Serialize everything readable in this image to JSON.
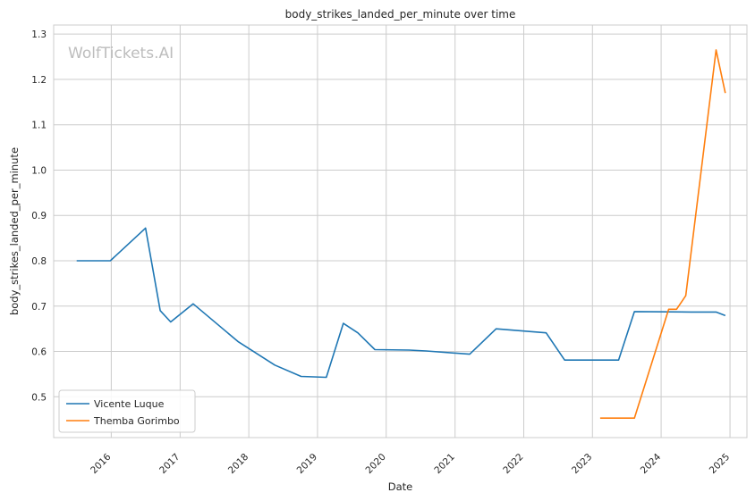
{
  "chart_data": {
    "type": "line",
    "title": "body_strikes_landed_per_minute over time",
    "xlabel": "Date",
    "ylabel": "body_strikes_landed_per_minute",
    "watermark": "WolfTickets.AI",
    "x_tick_labels": [
      "2016",
      "2017",
      "2018",
      "2019",
      "2020",
      "2021",
      "2022",
      "2023",
      "2024",
      "2025"
    ],
    "y_ticks": [
      0.5,
      0.6,
      0.7,
      0.8,
      0.9,
      1.0,
      1.1,
      1.2,
      1.3
    ],
    "y_tick_labels": [
      "0.5",
      "0.6",
      "0.7",
      "0.8",
      "0.9",
      "1.0",
      "1.1",
      "1.2",
      "1.3"
    ],
    "xlim": [
      "2015-03-01",
      "2025-04-01"
    ],
    "ylim": [
      0.41,
      1.32
    ],
    "grid": true,
    "legend_position": "lower-left",
    "series": [
      {
        "name": "Vicente Luque",
        "color": "#1f77b4",
        "x": [
          "2015-07-01",
          "2015-12-27",
          "2016-07-01",
          "2016-09-17",
          "2016-11-12",
          "2017-03-11",
          "2017-11-04",
          "2018-05-19",
          "2018-10-06",
          "2019-02-17",
          "2019-05-18",
          "2019-08-03",
          "2019-11-02",
          "2020-05-02",
          "2020-08-01",
          "2021-03-20",
          "2021-08-07",
          "2022-04-30",
          "2022-08-06",
          "2023-05-20",
          "2023-08-12",
          "2024-06-08",
          "2024-10-19",
          "2024-12-07"
        ],
        "y": [
          0.8,
          0.8,
          0.872,
          0.69,
          0.665,
          0.705,
          0.622,
          0.57,
          0.545,
          0.543,
          0.662,
          0.641,
          0.604,
          0.603,
          0.601,
          0.594,
          0.65,
          0.641,
          0.581,
          0.581,
          0.688,
          0.687,
          0.687,
          0.679
        ]
      },
      {
        "name": "Themba Gorimbo",
        "color": "#ff7f0e",
        "x": [
          "2023-02-11",
          "2023-08-12",
          "2024-02-10",
          "2024-03-23",
          "2024-05-11",
          "2024-10-19",
          "2024-12-07"
        ],
        "y": [
          0.453,
          0.453,
          0.693,
          0.693,
          0.723,
          1.265,
          1.17
        ]
      }
    ]
  }
}
